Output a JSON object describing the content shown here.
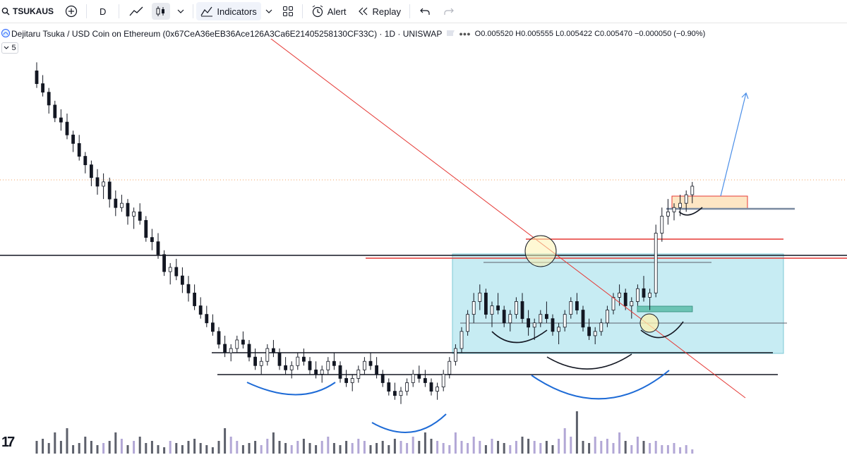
{
  "toolbar": {
    "symbol": "TSUKAUS",
    "interval": "D",
    "indicators_label": "Indicators",
    "alert_label": "Alert",
    "replay_label": "Replay",
    "icons": [
      "search-icon",
      "add-symbol-icon",
      "line-chart-icon",
      "candle-chart-icon",
      "chevron-down-icon",
      "indicators-icon",
      "templates-icon",
      "alert-icon",
      "replay-icon",
      "undo-icon",
      "redo-icon"
    ]
  },
  "legend": {
    "title": "Dejitaru Tsuka / USD Coin on Ethereum (0x67CeA36eEB36Ace126A3Ca6E21405258130CF33C) · 1D · UNISWAP",
    "ohlc": "O0.005520 H0.005555 L0.005422 C0.005470 −0.000050 (−0.90%)",
    "collapse_label": "5"
  },
  "colors": {
    "candle": "#131722",
    "volume": "#b2a7d6",
    "volume_dark": "#5d606b",
    "box_fill": "#c7ecf3",
    "trendline": "#e53935",
    "arc_blue": "#1565c0",
    "resistance": "#e53935"
  },
  "chart_data": {
    "type": "candlestick",
    "pair": "Dejitaru Tsuka / USD Coin",
    "interval": "1D",
    "exchange": "UNISWAP",
    "last": {
      "open": 0.00552,
      "high": 0.005555,
      "low": 0.005422,
      "close": 0.00547,
      "change": -5e-05,
      "change_pct": -0.9
    },
    "candles": [
      [
        1.22,
        1.24,
        1.18,
        1.19
      ],
      [
        1.19,
        1.21,
        1.16,
        1.17
      ],
      [
        1.17,
        1.18,
        1.12,
        1.14
      ],
      [
        1.14,
        1.15,
        1.1,
        1.11
      ],
      [
        1.11,
        1.13,
        1.08,
        1.1
      ],
      [
        1.1,
        1.12,
        1.06,
        1.07
      ],
      [
        1.07,
        1.08,
        1.03,
        1.05
      ],
      [
        1.05,
        1.07,
        1.01,
        1.02
      ],
      [
        1.02,
        1.03,
        0.98,
        1.0
      ],
      [
        1.0,
        1.01,
        0.95,
        0.97
      ],
      [
        0.97,
        0.99,
        0.93,
        0.95
      ],
      [
        0.95,
        0.98,
        0.92,
        0.96
      ],
      [
        0.96,
        0.97,
        0.9,
        0.92
      ],
      [
        0.92,
        0.94,
        0.88,
        0.9
      ],
      [
        0.9,
        0.93,
        0.89,
        0.91
      ],
      [
        0.91,
        0.92,
        0.86,
        0.88
      ],
      [
        0.88,
        0.9,
        0.85,
        0.89
      ],
      [
        0.89,
        0.91,
        0.86,
        0.87
      ],
      [
        0.87,
        0.88,
        0.82,
        0.83
      ],
      [
        0.83,
        0.85,
        0.8,
        0.82
      ],
      [
        0.82,
        0.84,
        0.78,
        0.79
      ],
      [
        0.79,
        0.8,
        0.74,
        0.75
      ],
      [
        0.75,
        0.77,
        0.72,
        0.76
      ],
      [
        0.76,
        0.78,
        0.73,
        0.74
      ],
      [
        0.74,
        0.76,
        0.7,
        0.72
      ],
      [
        0.72,
        0.74,
        0.68,
        0.7
      ],
      [
        0.7,
        0.72,
        0.66,
        0.67
      ],
      [
        0.67,
        0.69,
        0.64,
        0.65
      ],
      [
        0.65,
        0.67,
        0.62,
        0.63
      ],
      [
        0.63,
        0.65,
        0.6,
        0.61
      ],
      [
        0.61,
        0.62,
        0.57,
        0.58
      ],
      [
        0.58,
        0.6,
        0.55,
        0.56
      ],
      [
        0.56,
        0.58,
        0.54,
        0.57
      ],
      [
        0.57,
        0.6,
        0.56,
        0.59
      ],
      [
        0.59,
        0.61,
        0.57,
        0.58
      ],
      [
        0.58,
        0.59,
        0.54,
        0.55
      ],
      [
        0.55,
        0.57,
        0.52,
        0.53
      ],
      [
        0.53,
        0.55,
        0.51,
        0.54
      ],
      [
        0.54,
        0.58,
        0.53,
        0.57
      ],
      [
        0.57,
        0.59,
        0.55,
        0.56
      ],
      [
        0.56,
        0.57,
        0.52,
        0.53
      ],
      [
        0.53,
        0.55,
        0.51,
        0.52
      ],
      [
        0.52,
        0.54,
        0.5,
        0.53
      ],
      [
        0.53,
        0.56,
        0.52,
        0.55
      ],
      [
        0.55,
        0.57,
        0.53,
        0.54
      ],
      [
        0.54,
        0.55,
        0.51,
        0.52
      ],
      [
        0.52,
        0.54,
        0.5,
        0.51
      ],
      [
        0.51,
        0.53,
        0.49,
        0.52
      ],
      [
        0.52,
        0.55,
        0.51,
        0.54
      ],
      [
        0.54,
        0.56,
        0.52,
        0.53
      ],
      [
        0.53,
        0.54,
        0.49,
        0.5
      ],
      [
        0.5,
        0.52,
        0.48,
        0.49
      ],
      [
        0.49,
        0.51,
        0.47,
        0.5
      ],
      [
        0.5,
        0.53,
        0.49,
        0.52
      ],
      [
        0.52,
        0.55,
        0.51,
        0.54
      ],
      [
        0.54,
        0.56,
        0.52,
        0.53
      ],
      [
        0.53,
        0.55,
        0.5,
        0.51
      ],
      [
        0.51,
        0.52,
        0.48,
        0.49
      ],
      [
        0.49,
        0.5,
        0.46,
        0.47
      ],
      [
        0.47,
        0.49,
        0.45,
        0.46
      ],
      [
        0.46,
        0.48,
        0.44,
        0.47
      ],
      [
        0.47,
        0.5,
        0.46,
        0.49
      ],
      [
        0.49,
        0.52,
        0.48,
        0.51
      ],
      [
        0.51,
        0.53,
        0.49,
        0.5
      ],
      [
        0.5,
        0.52,
        0.48,
        0.49
      ],
      [
        0.49,
        0.5,
        0.46,
        0.47
      ],
      [
        0.47,
        0.49,
        0.45,
        0.48
      ],
      [
        0.48,
        0.52,
        0.47,
        0.51
      ],
      [
        0.51,
        0.55,
        0.5,
        0.54
      ],
      [
        0.54,
        0.58,
        0.53,
        0.57
      ],
      [
        0.57,
        0.62,
        0.56,
        0.61
      ],
      [
        0.61,
        0.66,
        0.6,
        0.65
      ],
      [
        0.65,
        0.7,
        0.63,
        0.68
      ],
      [
        0.68,
        0.72,
        0.66,
        0.7
      ],
      [
        0.7,
        0.71,
        0.64,
        0.65
      ],
      [
        0.65,
        0.68,
        0.62,
        0.67
      ],
      [
        0.67,
        0.7,
        0.65,
        0.66
      ],
      [
        0.66,
        0.67,
        0.62,
        0.63
      ],
      [
        0.63,
        0.66,
        0.61,
        0.65
      ],
      [
        0.65,
        0.69,
        0.64,
        0.68
      ],
      [
        0.68,
        0.7,
        0.63,
        0.64
      ],
      [
        0.64,
        0.66,
        0.6,
        0.62
      ],
      [
        0.62,
        0.64,
        0.59,
        0.63
      ],
      [
        0.63,
        0.66,
        0.62,
        0.65
      ],
      [
        0.65,
        0.68,
        0.63,
        0.64
      ],
      [
        0.64,
        0.65,
        0.6,
        0.61
      ],
      [
        0.61,
        0.63,
        0.58,
        0.62
      ],
      [
        0.62,
        0.66,
        0.61,
        0.65
      ],
      [
        0.65,
        0.69,
        0.64,
        0.68
      ],
      [
        0.68,
        0.7,
        0.65,
        0.66
      ],
      [
        0.66,
        0.67,
        0.61,
        0.62
      ],
      [
        0.62,
        0.64,
        0.59,
        0.6
      ],
      [
        0.6,
        0.62,
        0.58,
        0.61
      ],
      [
        0.61,
        0.64,
        0.6,
        0.63
      ],
      [
        0.63,
        0.67,
        0.62,
        0.66
      ],
      [
        0.66,
        0.7,
        0.65,
        0.69
      ],
      [
        0.69,
        0.72,
        0.67,
        0.7
      ],
      [
        0.7,
        0.71,
        0.66,
        0.67
      ],
      [
        0.67,
        0.69,
        0.64,
        0.68
      ],
      [
        0.68,
        0.72,
        0.67,
        0.71
      ],
      [
        0.71,
        0.74,
        0.68,
        0.69
      ],
      [
        0.69,
        0.71,
        0.66,
        0.7
      ],
      [
        0.7,
        0.86,
        0.69,
        0.84
      ],
      [
        0.84,
        0.9,
        0.82,
        0.88
      ],
      [
        0.88,
        0.92,
        0.86,
        0.89
      ],
      [
        0.89,
        0.91,
        0.87,
        0.9
      ],
      [
        0.9,
        0.93,
        0.88,
        0.91
      ],
      [
        0.91,
        0.94,
        0.89,
        0.93
      ],
      [
        0.93,
        0.96,
        0.91,
        0.95
      ]
    ],
    "volume": [
      0.3,
      0.35,
      0.25,
      0.5,
      0.3,
      0.6,
      0.2,
      0.25,
      0.4,
      0.3,
      0.2,
      0.25,
      0.3,
      0.5,
      0.35,
      0.2,
      0.3,
      0.4,
      0.25,
      0.3,
      0.2,
      0.15,
      0.3,
      0.25,
      0.2,
      0.3,
      0.35,
      0.25,
      0.2,
      0.15,
      0.3,
      0.6,
      0.4,
      0.3,
      0.2,
      0.25,
      0.3,
      0.2,
      0.35,
      0.5,
      0.3,
      0.25,
      0.2,
      0.3,
      0.35,
      0.25,
      0.2,
      0.3,
      0.4,
      0.25,
      0.2,
      0.3,
      0.25,
      0.35,
      0.3,
      0.2,
      0.25,
      0.3,
      0.2,
      0.35,
      0.3,
      0.25,
      0.4,
      0.3,
      0.5,
      0.35,
      0.3,
      0.25,
      0.2,
      0.5,
      0.3,
      0.25,
      0.4,
      0.3,
      0.2,
      0.35,
      0.3,
      0.25,
      0.2,
      0.3,
      0.4,
      0.35,
      0.3,
      0.25,
      0.3,
      0.2,
      0.35,
      0.6,
      0.4,
      1.0,
      0.3,
      0.25,
      0.4,
      0.3,
      0.35,
      0.25,
      0.5,
      0.3,
      0.2,
      0.4,
      0.3,
      0.25,
      0.3,
      0.2,
      0.2,
      0.25,
      0.15,
      0.2,
      0.1
    ],
    "ylim": [
      0.4,
      1.3
    ]
  }
}
